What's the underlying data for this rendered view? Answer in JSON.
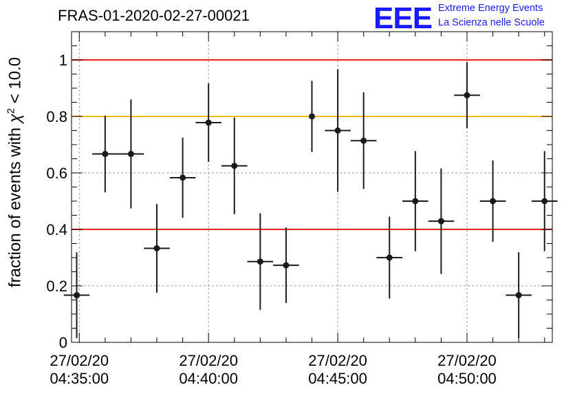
{
  "title": "FRAS-01-2020-02-27-00021",
  "logo": {
    "mark": "EEE",
    "line1": "Extreme Energy Events",
    "line2": "La Scienza nelle Scuole"
  },
  "chart_data": {
    "type": "scatter",
    "title": "FRAS-01-2020-02-27-00021",
    "xlabel": "",
    "ylabel": "fraction of events with χ² < 10.0",
    "ylabel_pre": "fraction of events with ",
    "ylabel_chi": "χ",
    "ylabel_sup": "2",
    "ylabel_post": " < 10.0",
    "ylim": [
      0,
      1.1
    ],
    "xlim_minutes": [
      -0.3,
      18.3
    ],
    "yticks": [
      0,
      0.2,
      0.4,
      0.6,
      0.8,
      1
    ],
    "ytick_labels": [
      "0",
      "0.2",
      "0.4",
      "0.6",
      "0.8",
      "1"
    ],
    "xticks": [
      {
        "minute": 0,
        "date": "27/02/20",
        "time": "04:35:00"
      },
      {
        "minute": 5,
        "date": "27/02/20",
        "time": "04:40:00"
      },
      {
        "minute": 10,
        "date": "27/02/20",
        "time": "04:45:00"
      },
      {
        "minute": 15,
        "date": "27/02/20",
        "time": "04:50:00"
      }
    ],
    "grid": true,
    "reference_lines": [
      {
        "y": 1.0,
        "color": "#e8201a"
      },
      {
        "y": 0.8,
        "color": "#ffbf00"
      },
      {
        "y": 0.4,
        "color": "#e8201a"
      }
    ],
    "point_color": "#1a1a1a",
    "points": [
      {
        "minute": -0.1,
        "y": 0.167,
        "yerr": 0.152,
        "xerr": 0.5
      },
      {
        "minute": 1.0,
        "y": 0.667,
        "yerr": 0.136,
        "xerr": 0.5
      },
      {
        "minute": 2.0,
        "y": 0.667,
        "yerr": 0.193,
        "xerr": 0.5
      },
      {
        "minute": 3.0,
        "y": 0.333,
        "yerr": 0.157,
        "xerr": 0.5
      },
      {
        "minute": 4.0,
        "y": 0.583,
        "yerr": 0.142,
        "xerr": 0.5
      },
      {
        "minute": 5.0,
        "y": 0.778,
        "yerr": 0.139,
        "xerr": 0.5
      },
      {
        "minute": 6.0,
        "y": 0.625,
        "yerr": 0.171,
        "xerr": 0.5
      },
      {
        "minute": 7.0,
        "y": 0.286,
        "yerr": 0.171,
        "xerr": 0.5
      },
      {
        "minute": 8.0,
        "y": 0.273,
        "yerr": 0.134,
        "xerr": 0.5
      },
      {
        "minute": 9.0,
        "y": 0.8,
        "yerr": 0.126,
        "xerr": 0.05
      },
      {
        "minute": 10.0,
        "y": 0.75,
        "yerr": 0.217,
        "xerr": 0.5
      },
      {
        "minute": 11.0,
        "y": 0.714,
        "yerr": 0.171,
        "xerr": 0.5
      },
      {
        "minute": 12.0,
        "y": 0.3,
        "yerr": 0.145,
        "xerr": 0.5
      },
      {
        "minute": 13.0,
        "y": 0.5,
        "yerr": 0.177,
        "xerr": 0.5
      },
      {
        "minute": 14.0,
        "y": 0.429,
        "yerr": 0.187,
        "xerr": 0.5
      },
      {
        "minute": 15.0,
        "y": 0.875,
        "yerr": 0.117,
        "xerr": 0.5
      },
      {
        "minute": 16.0,
        "y": 0.5,
        "yerr": 0.144,
        "xerr": 0.5
      },
      {
        "minute": 17.0,
        "y": 0.167,
        "yerr": 0.152,
        "xerr": 0.5
      },
      {
        "minute": 18.0,
        "y": 0.5,
        "yerr": 0.177,
        "xerr": 0.5
      }
    ]
  }
}
